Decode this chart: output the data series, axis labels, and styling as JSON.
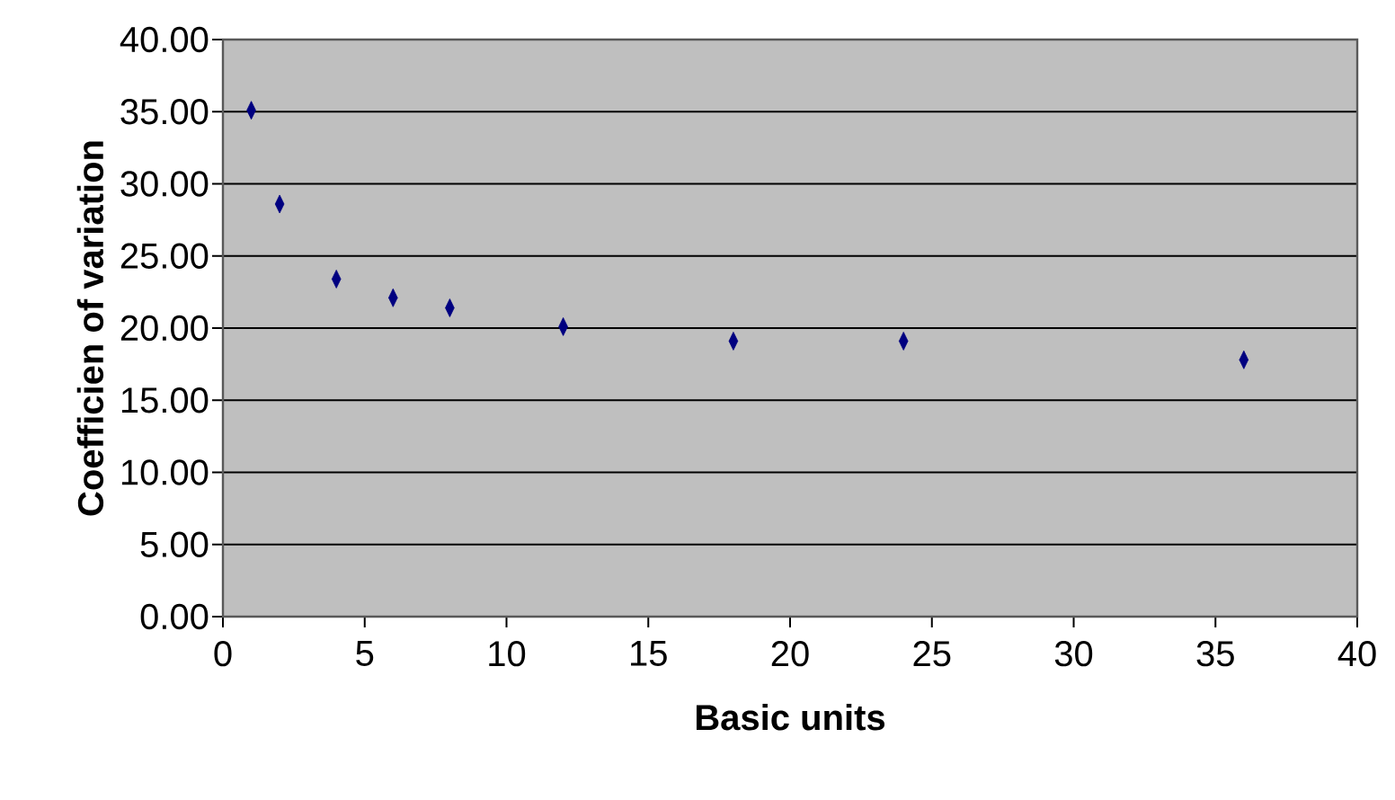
{
  "chart_data": {
    "type": "scatter",
    "xlabel": "Basic units",
    "ylabel": "Coefficien  of variation",
    "x": [
      1,
      2,
      4,
      6,
      8,
      12,
      18,
      24,
      36
    ],
    "values": [
      35.1,
      28.6,
      23.4,
      22.1,
      21.4,
      20.1,
      19.1,
      19.1,
      17.8
    ],
    "color": "#000080",
    "marker": "diamond",
    "grid": "y",
    "xlim": [
      0,
      40
    ],
    "xticks": [
      0,
      5,
      10,
      15,
      20,
      25,
      30,
      35,
      40
    ],
    "ylim": [
      0,
      40
    ],
    "yticks": [
      {
        "value": 0,
        "label": "0.00"
      },
      {
        "value": 5,
        "label": "5.00"
      },
      {
        "value": 10,
        "label": "10.00"
      },
      {
        "value": 15,
        "label": "15.00"
      },
      {
        "value": 20,
        "label": "20.00"
      },
      {
        "value": 25,
        "label": "25.00"
      },
      {
        "value": 30,
        "label": "30.00"
      },
      {
        "value": 35,
        "label": "35.00"
      },
      {
        "value": 40,
        "label": "40.00"
      }
    ]
  }
}
